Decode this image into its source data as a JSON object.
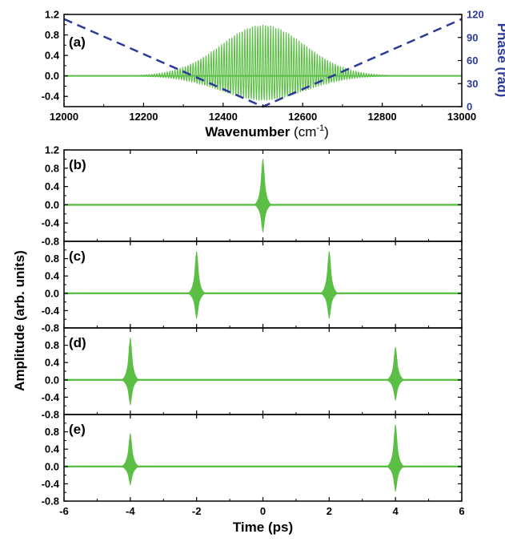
{
  "colors": {
    "signal": "#5cbf45",
    "phase": "#2b3a9a",
    "axis": "#000000"
  },
  "chart_data": [
    {
      "type": "line",
      "panel": "(a)",
      "xlabel": "Wavenumber",
      "xlabel_unit": "(cm",
      "xlabel_sup": "-1",
      "xlabel_close": ")",
      "y2label": "Phase (rad)",
      "xlim": [
        12000,
        13000
      ],
      "ylim": [
        -0.6,
        1.2
      ],
      "y2lim": [
        0,
        120
      ],
      "xticks": [
        "12000",
        "12200",
        "12400",
        "12600",
        "12800",
        "13000"
      ],
      "yticks": [
        "1.2",
        "0.8",
        "0.4",
        "0.0",
        "-0.4"
      ],
      "y2ticks": [
        "120",
        "90",
        "60",
        "30",
        "0"
      ],
      "spectrum": {
        "center": 12500,
        "peak_amplitude": 1.0,
        "fwhm": 250,
        "fringe_spacing": 6.5,
        "min_amplitude": -0.48
      },
      "phase": {
        "x": [
          12000,
          12500,
          13000
        ],
        "y": [
          114,
          0,
          114
        ]
      }
    },
    {
      "type": "line",
      "panel": "(b)",
      "xlim": [
        -6,
        6
      ],
      "ylim": [
        -0.8,
        1.2
      ],
      "yticks": [
        "1.2",
        "0.8",
        "0.4",
        "0.0",
        "-0.4",
        "-0.8"
      ],
      "pulses": [
        {
          "t": 0,
          "max": 1.0,
          "min": -0.6
        }
      ]
    },
    {
      "type": "line",
      "panel": "(c)",
      "xlim": [
        -6,
        6
      ],
      "ylim": [
        -0.8,
        1.2
      ],
      "yticks": [
        "0.8",
        "0.4",
        "0.0",
        "-0.4",
        "-0.8"
      ],
      "pulses": [
        {
          "t": -2,
          "max": 0.97,
          "min": -0.58
        },
        {
          "t": 2,
          "max": 0.97,
          "min": -0.58
        }
      ]
    },
    {
      "type": "line",
      "panel": "(d)",
      "xlim": [
        -6,
        6
      ],
      "ylim": [
        -0.8,
        1.2
      ],
      "yticks": [
        "0.8",
        "0.4",
        "0.0",
        "-0.4",
        "-0.8"
      ],
      "pulses": [
        {
          "t": -4,
          "max": 0.97,
          "min": -0.58
        },
        {
          "t": 4,
          "max": 0.76,
          "min": -0.48
        }
      ]
    },
    {
      "type": "line",
      "panel": "(e)",
      "xlim": [
        -6,
        6
      ],
      "ylim": [
        -0.8,
        1.2
      ],
      "yticks": [
        "0.8",
        "0.4",
        "0.0",
        "-0.4",
        "-0.8"
      ],
      "xticks": [
        "-6",
        "-4",
        "-2",
        "0",
        "2",
        "4",
        "6"
      ],
      "xlabel": "Time (ps)",
      "pulses": [
        {
          "t": -4,
          "max": 0.76,
          "min": -0.43
        },
        {
          "t": 4,
          "max": 0.97,
          "min": -0.58
        }
      ]
    }
  ],
  "shared_ylabel": "Amplitude (arb. units)"
}
